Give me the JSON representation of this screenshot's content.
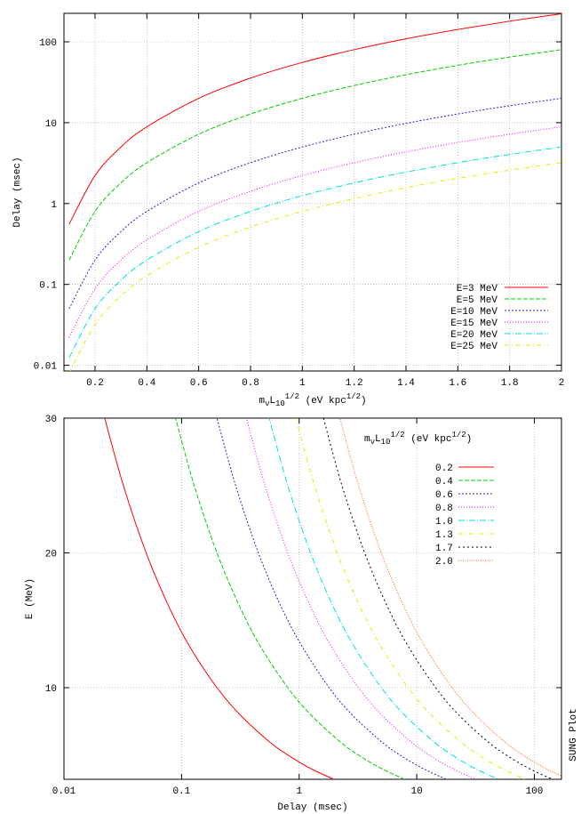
{
  "chart_data": [
    {
      "type": "line",
      "ylabel": "Delay (msec)",
      "xlabel": [
        "m",
        "ν",
        "L",
        "10",
        "1/2",
        " (eV kpc",
        "1/2",
        ")"
      ],
      "xlim": [
        0.08,
        2
      ],
      "xticks": [
        0.2,
        0.4,
        0.6,
        0.8,
        1,
        1.2,
        1.4,
        1.6,
        1.8,
        2
      ],
      "ylim": [
        0.0085,
        225
      ],
      "yticks": [
        0.01,
        0.1,
        1,
        10,
        100
      ],
      "ylog": true,
      "grid": true,
      "legend": "lower right",
      "x": [
        0.1,
        0.2,
        0.3,
        0.4,
        0.6,
        0.8,
        1.0,
        1.2,
        1.4,
        1.6,
        1.8,
        2.0
      ],
      "series": [
        {
          "name": "E=3 MeV",
          "color": "#ff0000",
          "values": [
            0.556,
            2.22,
            5,
            8.89,
            20,
            35.6,
            55.6,
            80,
            109,
            142,
            180,
            222
          ]
        },
        {
          "name": "E=5 MeV",
          "color": "#00d000",
          "values": [
            0.2,
            0.8,
            1.8,
            3.2,
            7.2,
            12.8,
            20,
            28.8,
            39.2,
            51.2,
            64.8,
            80
          ]
        },
        {
          "name": "E=10 MeV",
          "color": "#2020d0",
          "values": [
            0.05,
            0.2,
            0.45,
            0.8,
            1.8,
            3.2,
            5,
            7.2,
            9.8,
            12.8,
            16.2,
            20
          ]
        },
        {
          "name": "E=15 MeV",
          "color": "#ff00ff",
          "values": [
            0.0222,
            0.0889,
            0.2,
            0.356,
            0.8,
            1.42,
            2.22,
            3.2,
            4.36,
            5.69,
            7.2,
            8.89
          ]
        },
        {
          "name": "E=20 MeV",
          "color": "#00e0e0",
          "values": [
            0.0125,
            0.05,
            0.113,
            0.2,
            0.45,
            0.8,
            1.25,
            1.8,
            2.45,
            3.2,
            4.05,
            5
          ]
        },
        {
          "name": "E=25 MeV",
          "color": "#e8e800",
          "values": [
            0.008,
            0.032,
            0.072,
            0.128,
            0.288,
            0.512,
            0.8,
            1.15,
            1.57,
            2.05,
            2.59,
            3.2
          ]
        }
      ]
    },
    {
      "type": "line",
      "xlabel": "Delay (msec)",
      "ylabel": "E (MeV)",
      "legend_title": [
        "m",
        "ν",
        "L",
        "10",
        "1/2",
        " (eV kpc",
        "1/2",
        ")"
      ],
      "xlim": [
        0.01,
        170
      ],
      "xticks": [
        0.01,
        0.1,
        1,
        10,
        100
      ],
      "xlog": true,
      "ylim": [
        3.2,
        30
      ],
      "yticks": [
        10,
        20,
        30
      ],
      "grid": true,
      "legend": "upper right",
      "annotation": "SUNG Plot",
      "y": [
        3,
        4,
        5,
        6,
        8,
        10,
        13,
        16,
        20,
        25,
        30
      ],
      "series": [
        {
          "name": "0.2",
          "color": "#ff0000",
          "x": [
            2.22,
            1.25,
            0.8,
            0.556,
            0.313,
            0.2,
            0.118,
            0.0781,
            0.05,
            0.032,
            0.0222
          ]
        },
        {
          "name": "0.4",
          "color": "#00d000",
          "x": [
            8.89,
            5,
            3.2,
            2.22,
            1.25,
            0.8,
            0.473,
            0.313,
            0.2,
            0.128,
            0.0889
          ]
        },
        {
          "name": "0.6",
          "color": "#2020d0",
          "x": [
            20,
            11.3,
            7.2,
            5,
            2.81,
            1.8,
            1.07,
            0.703,
            0.45,
            0.288,
            0.2
          ]
        },
        {
          "name": "0.8",
          "color": "#ff00ff",
          "x": [
            35.6,
            20,
            12.8,
            8.89,
            5,
            3.2,
            1.89,
            1.25,
            0.8,
            0.512,
            0.356
          ]
        },
        {
          "name": "1.0",
          "color": "#00e0e0",
          "x": [
            55.6,
            31.3,
            20,
            13.9,
            7.81,
            5,
            2.96,
            1.95,
            1.25,
            0.8,
            0.556
          ]
        },
        {
          "name": "1.3",
          "color": "#e8e800",
          "x": [
            93.9,
            52.8,
            33.8,
            23.5,
            13.2,
            8.45,
            5,
            3.3,
            2.11,
            1.35,
            0.939
          ]
        },
        {
          "name": "1.7",
          "color": "#000000",
          "x": [
            161,
            90.3,
            57.8,
            40.1,
            22.6,
            14.5,
            8.55,
            5.64,
            3.61,
            2.31,
            1.61
          ]
        },
        {
          "name": "2.0",
          "color": "#ff6020",
          "x": [
            222,
            125,
            80,
            55.6,
            31.3,
            20,
            11.8,
            7.81,
            5,
            3.2,
            2.22
          ]
        }
      ]
    }
  ]
}
